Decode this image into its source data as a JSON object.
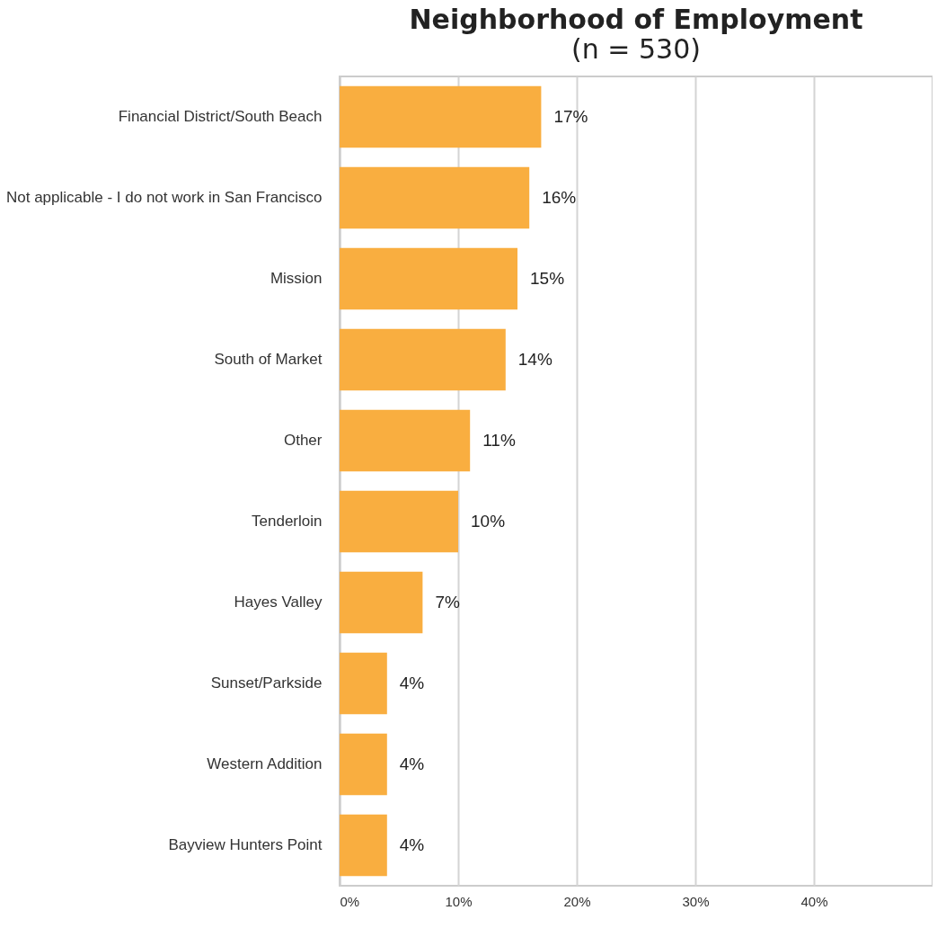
{
  "chart_data": {
    "type": "bar",
    "orientation": "horizontal",
    "title": "Neighborhood of Employment",
    "subtitle": "(n = 530)",
    "categories": [
      "Financial District/South Beach",
      "Not applicable - I do not work in San Francisco",
      "Mission",
      "South of Market",
      "Other",
      "Tenderloin",
      "Hayes Valley",
      "Sunset/Parkside",
      "Western Addition",
      "Bayview Hunters Point"
    ],
    "values": [
      17,
      16,
      15,
      14,
      11,
      10,
      7,
      4,
      4,
      4
    ],
    "value_labels": [
      "17%",
      "16%",
      "15%",
      "14%",
      "11%",
      "10%",
      "7%",
      "4%",
      "4%",
      "4%"
    ],
    "color": "#f9ae40",
    "xlim": [
      0,
      50
    ],
    "xticks": [
      {
        "value": 0,
        "label": "0%"
      },
      {
        "value": 10,
        "label": "10%"
      },
      {
        "value": 20,
        "label": "20%"
      },
      {
        "value": 30,
        "label": "30%"
      },
      {
        "value": 40,
        "label": "40%"
      }
    ],
    "grid": "x"
  }
}
